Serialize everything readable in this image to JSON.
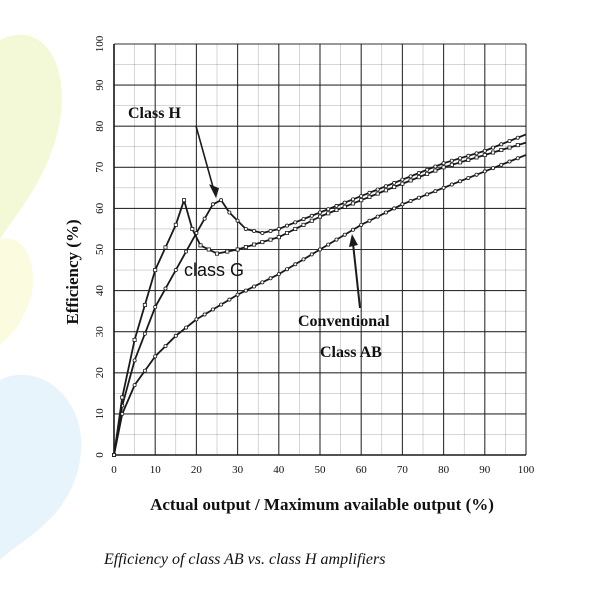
{
  "caption": "Efficiency of class AB vs. class H amplifiers",
  "colors": {
    "line": "#1a1a1a",
    "grid": "#1a1a1a",
    "background": "#ffffff",
    "watermark": "#eef6c8"
  },
  "chart_data": {
    "type": "line",
    "title": "",
    "xlabel": "Actual output / Maximum available output (%)",
    "ylabel": "Efficiency (%)",
    "xlim": [
      0,
      100
    ],
    "ylim": [
      0,
      100
    ],
    "xticks": [
      0,
      10,
      20,
      30,
      40,
      50,
      60,
      70,
      80,
      90,
      100
    ],
    "yticks": [
      0,
      10,
      20,
      30,
      40,
      50,
      60,
      70,
      80,
      90,
      100
    ],
    "grid": true,
    "series": [
      {
        "name": "Class H",
        "x": [
          0,
          2,
          5,
          10,
          15,
          20,
          24,
          26,
          28,
          32,
          36,
          40,
          50,
          60,
          70,
          80,
          90,
          100
        ],
        "y": [
          0,
          12,
          23,
          36,
          45,
          54,
          61,
          62,
          59,
          55,
          54,
          55,
          59,
          63,
          67,
          71,
          74,
          78
        ]
      },
      {
        "name": "class G",
        "x": [
          0,
          2,
          5,
          10,
          15,
          17,
          19,
          21,
          23,
          25,
          30,
          40,
          50,
          60,
          70,
          80,
          90,
          100
        ],
        "y": [
          0,
          14,
          28,
          45,
          56,
          62,
          55,
          51,
          50,
          49,
          50,
          53,
          58,
          62,
          66,
          70,
          73,
          76
        ]
      },
      {
        "name": "Conventional Class AB",
        "x": [
          0,
          2,
          5,
          10,
          15,
          20,
          30,
          40,
          50,
          60,
          70,
          80,
          90,
          100
        ],
        "y": [
          0,
          10,
          17,
          24,
          29,
          33,
          39,
          44,
          50,
          56,
          61,
          65,
          69,
          73
        ]
      }
    ],
    "annotations": [
      {
        "text": "Class H",
        "points_to_x": 25,
        "points_to_y": 62
      },
      {
        "text": "class G",
        "points_to_x": 22,
        "points_to_y": 50
      },
      {
        "text": "Conventional",
        "points_to_x": 58,
        "points_to_y": 54
      },
      {
        "text": "Class AB",
        "points_to_x": 58,
        "points_to_y": 54
      }
    ]
  }
}
